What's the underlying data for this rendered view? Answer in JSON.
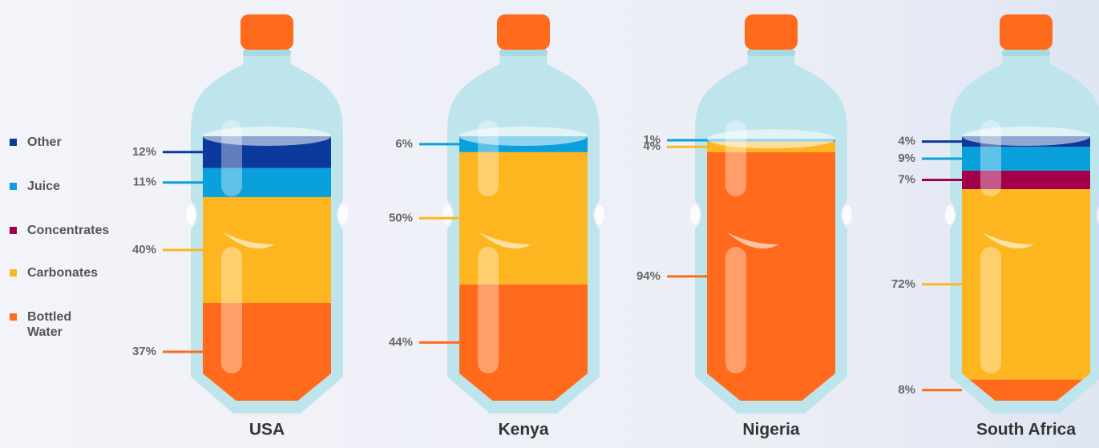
{
  "chart_data": {
    "type": "stacked-bottle",
    "categories": [
      "USA",
      "Kenya",
      "Nigeria",
      "South Africa"
    ],
    "series": [
      {
        "name": "Other",
        "color": "#0b3a9c",
        "values": [
          12,
          null,
          null,
          4
        ],
        "value_labels": [
          "12%",
          null,
          null,
          "4%"
        ]
      },
      {
        "name": "Juice",
        "color": "#0aa0dc",
        "values": [
          11,
          6,
          1,
          9
        ],
        "value_labels": [
          "11%",
          "6%",
          "1%",
          "9%"
        ]
      },
      {
        "name": "Concentrates",
        "color": "#a3004c",
        "values": [
          null,
          null,
          null,
          7
        ],
        "value_labels": [
          null,
          null,
          null,
          "7%"
        ]
      },
      {
        "name": "Carbonates",
        "color": "#fdb61f",
        "values": [
          40,
          50,
          4,
          72
        ],
        "value_labels": [
          "40%",
          "50%",
          "4%",
          "72%"
        ]
      },
      {
        "name": "Bottled Water",
        "color": "#ff6a1c",
        "values": [
          37,
          44,
          94,
          8
        ],
        "value_labels": [
          "37%",
          "44%",
          "94%",
          "8%"
        ]
      }
    ]
  }
}
